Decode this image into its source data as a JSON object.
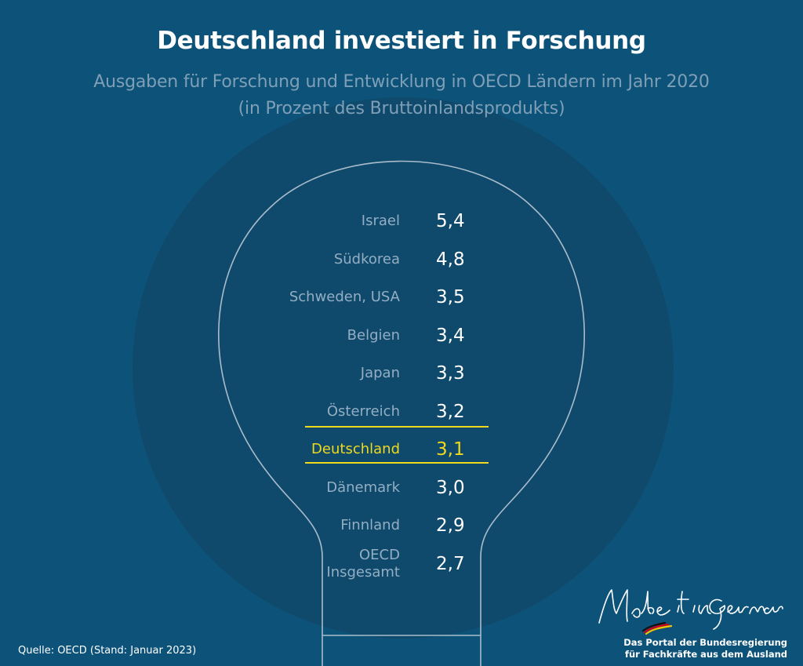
{
  "title": "Deutschland investiert in Forschung",
  "subtitle_line1": "Ausgaben für Forschung und Entwicklung in OECD Ländern im Jahr 2020",
  "subtitle_line2": "(in Prozent des Bruttoinlandsprodukts)",
  "source": "Quelle: OECD (Stand: Januar 2023)",
  "logo": {
    "script_text": "Make it in Germany",
    "tagline_line1": "Das Portal der Bundesregierung",
    "tagline_line2": "für Fachkräfte aus dem Ausland"
  },
  "colors": {
    "background": "#0d5278",
    "highlight": "#f0d81b",
    "label": "#93aec3"
  },
  "chart_data": {
    "type": "table",
    "title": "Deutschland investiert in Forschung",
    "subtitle": "Ausgaben für Forschung und Entwicklung in OECD Ländern im Jahr 2020 (in Prozent des Bruttoinlandsprodukts)",
    "highlight": "Deutschland",
    "rows": [
      {
        "country": "Israel",
        "value": "5,4"
      },
      {
        "country": "Südkorea",
        "value": "4,8"
      },
      {
        "country": "Schweden, USA",
        "value": "3,5"
      },
      {
        "country": "Belgien",
        "value": "3,4"
      },
      {
        "country": "Japan",
        "value": "3,3"
      },
      {
        "country": "Österreich",
        "value": "3,2"
      },
      {
        "country": "Deutschland",
        "value": "3,1"
      },
      {
        "country": "Dänemark",
        "value": "3,0"
      },
      {
        "country": "Finnland",
        "value": "2,9"
      },
      {
        "country": "OECD\nInsgesamt",
        "value": "2,7"
      }
    ]
  }
}
